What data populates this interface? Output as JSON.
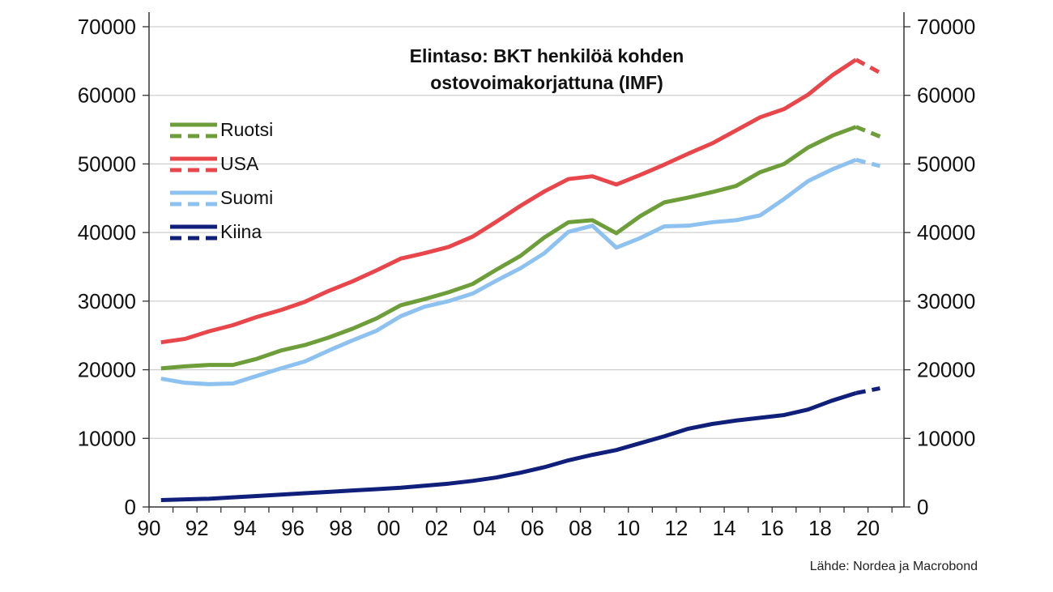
{
  "chart_data": {
    "type": "line",
    "title_line1": "Elintaso: BKT henkilöä kohden",
    "title_line2": "ostovoimakorjattuna (IMF)",
    "source": "Lähde: Nordea ja Macrobond",
    "x_ticks": [
      "90",
      "92",
      "94",
      "96",
      "98",
      "00",
      "02",
      "04",
      "06",
      "08",
      "10",
      "12",
      "14",
      "16",
      "18",
      "20"
    ],
    "y_ticks": [
      0,
      10000,
      20000,
      30000,
      40000,
      50000,
      60000,
      70000
    ],
    "ylim": [
      0,
      70000
    ],
    "xlim": [
      1990,
      2021
    ],
    "grid": true,
    "legend_position": "top-left",
    "x": [
      1990,
      1991,
      1992,
      1993,
      1994,
      1995,
      1996,
      1997,
      1998,
      1999,
      2000,
      2001,
      2002,
      2003,
      2004,
      2005,
      2006,
      2007,
      2008,
      2009,
      2010,
      2011,
      2012,
      2013,
      2014,
      2015,
      2016,
      2017,
      2018,
      2019,
      2020
    ],
    "forecast_from": 2019,
    "series": [
      {
        "name": "Ruotsi",
        "color": "#6d9e3a",
        "values": [
          20200,
          20500,
          20700,
          20700,
          21600,
          22800,
          23600,
          24700,
          26000,
          27500,
          29400,
          30300,
          31300,
          32500,
          34600,
          36600,
          39300,
          41500,
          41800,
          39900,
          42400,
          44400,
          45100,
          45900,
          46800,
          48800,
          50000,
          52400,
          54100,
          55400,
          54000
        ]
      },
      {
        "name": "USA",
        "color": "#e8464a",
        "values": [
          24000,
          24500,
          25600,
          26500,
          27700,
          28700,
          29900,
          31500,
          32900,
          34500,
          36200,
          37000,
          37900,
          39400,
          41600,
          43900,
          46000,
          47800,
          48200,
          47000,
          48400,
          49900,
          51500,
          53000,
          54900,
          56800,
          58000,
          60100,
          62900,
          65200,
          63300
        ]
      },
      {
        "name": "Suomi",
        "color": "#8dc1ef",
        "values": [
          18700,
          18100,
          17900,
          18000,
          19100,
          20200,
          21200,
          22800,
          24300,
          25700,
          27800,
          29200,
          30000,
          31100,
          33000,
          34800,
          37000,
          40100,
          41000,
          37800,
          39200,
          40900,
          41000,
          41500,
          41800,
          42500,
          44900,
          47500,
          49200,
          50600,
          49700
        ]
      },
      {
        "name": "Kiina",
        "color": "#0f1f7a",
        "values": [
          1000,
          1100,
          1200,
          1400,
          1600,
          1800,
          2000,
          2200,
          2400,
          2600,
          2800,
          3100,
          3400,
          3800,
          4300,
          5000,
          5800,
          6800,
          7600,
          8300,
          9300,
          10300,
          11400,
          12100,
          12600,
          13000,
          13400,
          14200,
          15500,
          16600,
          17300
        ]
      }
    ]
  }
}
